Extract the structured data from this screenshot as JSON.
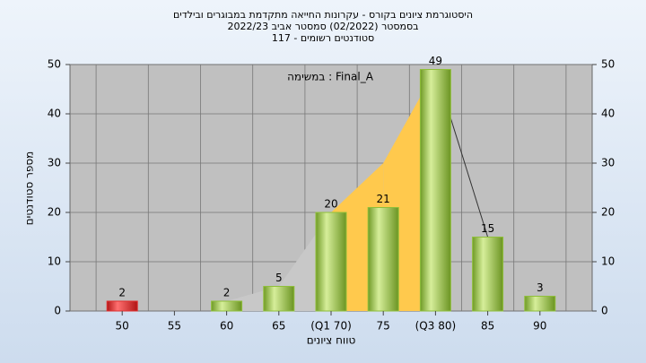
{
  "chart_data": {
    "type": "bar",
    "title": "היסטוגרמת ציונים בקורס - עקרונות החייאה מתקדמת במבוגרים ובילדים",
    "subtitle": "בסמסטר  (02/2022)  סמסטר אביב 2022/23",
    "subtitle2": "סטודנטים רשומים - 117",
    "annotation": "Final_A : במשימה",
    "x_label": "טווח ציונים",
    "y_label": "מספר סטודנטים",
    "categories": [
      "50",
      "55",
      "60",
      "65",
      "(Q1 70)",
      "75",
      "(Q3 80)",
      "85",
      "90"
    ],
    "values": [
      2,
      null,
      2,
      5,
      20,
      21,
      49,
      15,
      3
    ],
    "colors": [
      "#e03030",
      null,
      "#8fbf3a",
      "#8fbf3a",
      "#8fbf3a",
      "#8fbf3a",
      "#8fbf3a",
      "#8fbf3a",
      "#8fbf3a"
    ],
    "area": {
      "values": [
        null,
        null,
        2,
        5,
        20,
        30,
        49,
        15,
        null
      ],
      "fills": [
        null,
        null,
        "#c8c8c8",
        "#c8c8c8",
        "#ffc94d",
        "#ffc94d",
        null,
        null
      ]
    },
    "ylim": [
      0,
      50
    ],
    "yticks": [
      0,
      10,
      20,
      30,
      40,
      50
    ],
    "y2lim": [
      0,
      50
    ],
    "y2ticks": [
      0,
      10,
      20,
      30,
      40,
      50
    ],
    "grid": true
  }
}
